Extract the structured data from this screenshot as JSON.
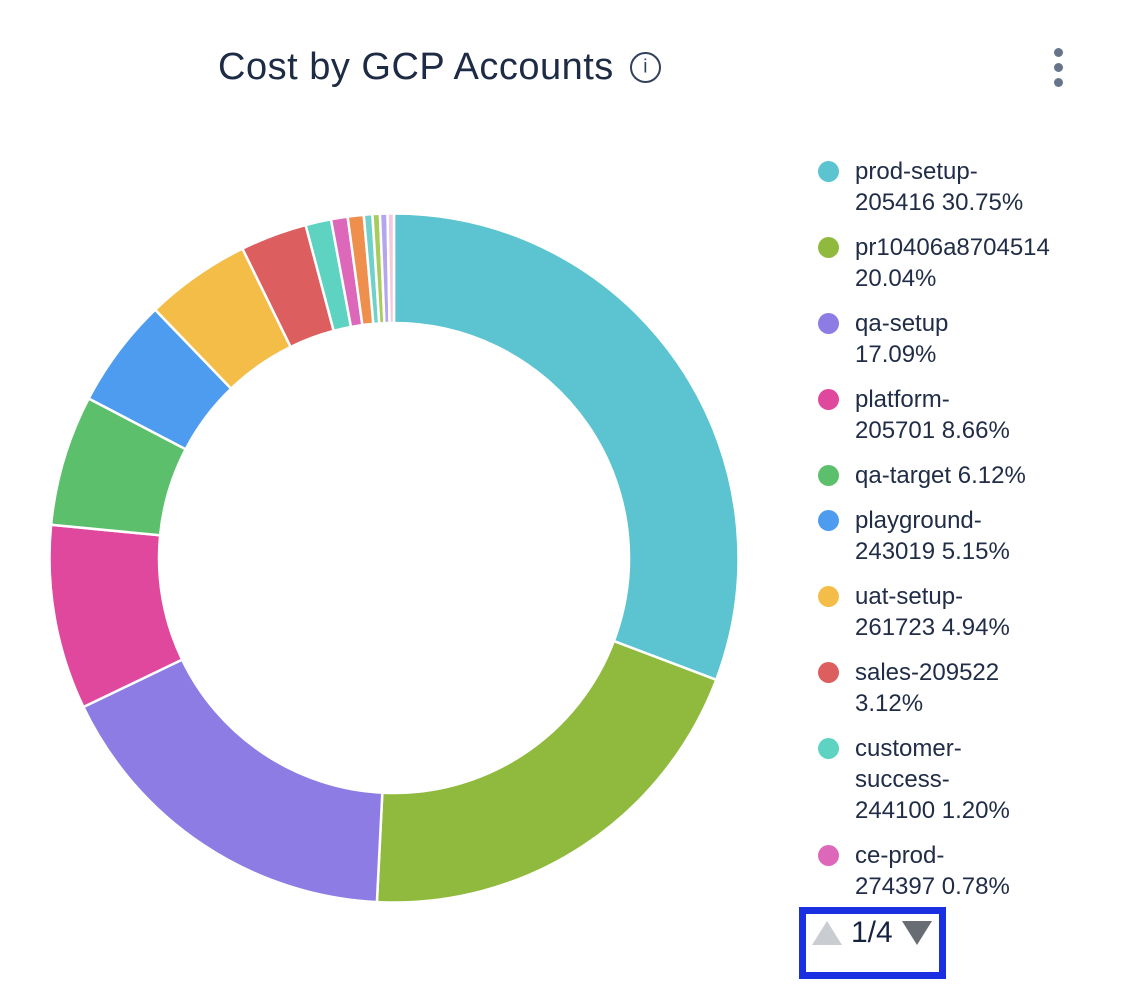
{
  "header": {
    "title": "Cost by GCP Accounts"
  },
  "legend": {
    "items": [
      {
        "label": "prod-setup-205416",
        "pct": "30.75%",
        "display": "prod-setup-\n205416 30.75%",
        "color": "#5bc4d0"
      },
      {
        "label": "pr10406a8704514",
        "pct": "20.04%",
        "display": "pr10406a8704514\n20.04%",
        "color": "#8fba3d"
      },
      {
        "label": "qa-setup",
        "pct": "17.09%",
        "display": "qa-setup\n17.09%",
        "color": "#8c7ce4"
      },
      {
        "label": "platform-205701",
        "pct": "8.66%",
        "display": "platform-\n205701 8.66%",
        "color": "#e0489e"
      },
      {
        "label": "qa-target",
        "pct": "6.12%",
        "display": "qa-target 6.12%",
        "color": "#5cbf6b"
      },
      {
        "label": "playground-243019",
        "pct": "5.15%",
        "display": "playground-\n243019 5.15%",
        "color": "#4d9cf0"
      },
      {
        "label": "uat-setup-261723",
        "pct": "4.94%",
        "display": "uat-setup-\n261723 4.94%",
        "color": "#f3bd48"
      },
      {
        "label": "sales-209522",
        "pct": "3.12%",
        "display": "sales-209522\n3.12%",
        "color": "#dd5e5e"
      },
      {
        "label": "customer-success-244100",
        "pct": "1.20%",
        "display": "customer-\nsuccess-\n244100 1.20%",
        "color": "#5ed3c2"
      },
      {
        "label": "ce-prod-274397",
        "pct": "0.78%",
        "display": "ce-prod-\n274397 0.78%",
        "color": "#dd68ba"
      }
    ],
    "pager": {
      "current": "1/4",
      "up_enabled": false,
      "down_enabled": true,
      "up_color": "#c9cdd1",
      "down_color": "#676d73"
    }
  },
  "annotation": {
    "highlight_color": "#1a2fe1",
    "target": "legend-pager"
  },
  "chart_data": {
    "type": "pie",
    "donut": true,
    "title": "Cost by GCP Accounts",
    "legend_position": "right",
    "start_at_12_oclock": true,
    "clockwise": true,
    "inner_radius_ratio": 0.68,
    "unit": "%",
    "series": [
      {
        "name": "prod-setup-205416",
        "value": 30.75,
        "color": "#5bc4d0"
      },
      {
        "name": "pr10406a8704514",
        "value": 20.04,
        "color": "#8fba3d"
      },
      {
        "name": "qa-setup",
        "value": 17.09,
        "color": "#8c7ce4"
      },
      {
        "name": "platform-205701",
        "value": 8.66,
        "color": "#e0489e"
      },
      {
        "name": "qa-target",
        "value": 6.12,
        "color": "#5cbf6b"
      },
      {
        "name": "playground-243019",
        "value": 5.15,
        "color": "#4d9cf0"
      },
      {
        "name": "uat-setup-261723",
        "value": 4.94,
        "color": "#f3bd48"
      },
      {
        "name": "sales-209522",
        "value": 3.12,
        "color": "#dd5e5e"
      },
      {
        "name": "customer-success-244100",
        "value": 1.2,
        "color": "#5ed3c2"
      },
      {
        "name": "ce-prod-274397",
        "value": 0.78,
        "color": "#dd68ba"
      },
      {
        "name": "unlabeled-slice-1",
        "value": 0.75,
        "color": "#ef8f4d"
      },
      {
        "name": "unlabeled-slice-2",
        "value": 0.4,
        "color": "#6fd0cc"
      },
      {
        "name": "unlabeled-slice-3",
        "value": 0.35,
        "color": "#a7cc5c"
      },
      {
        "name": "unlabeled-slice-4",
        "value": 0.35,
        "color": "#b3a6ee"
      },
      {
        "name": "unlabeled-slice-5",
        "value": 0.3,
        "color": "#f3c9de"
      }
    ]
  }
}
